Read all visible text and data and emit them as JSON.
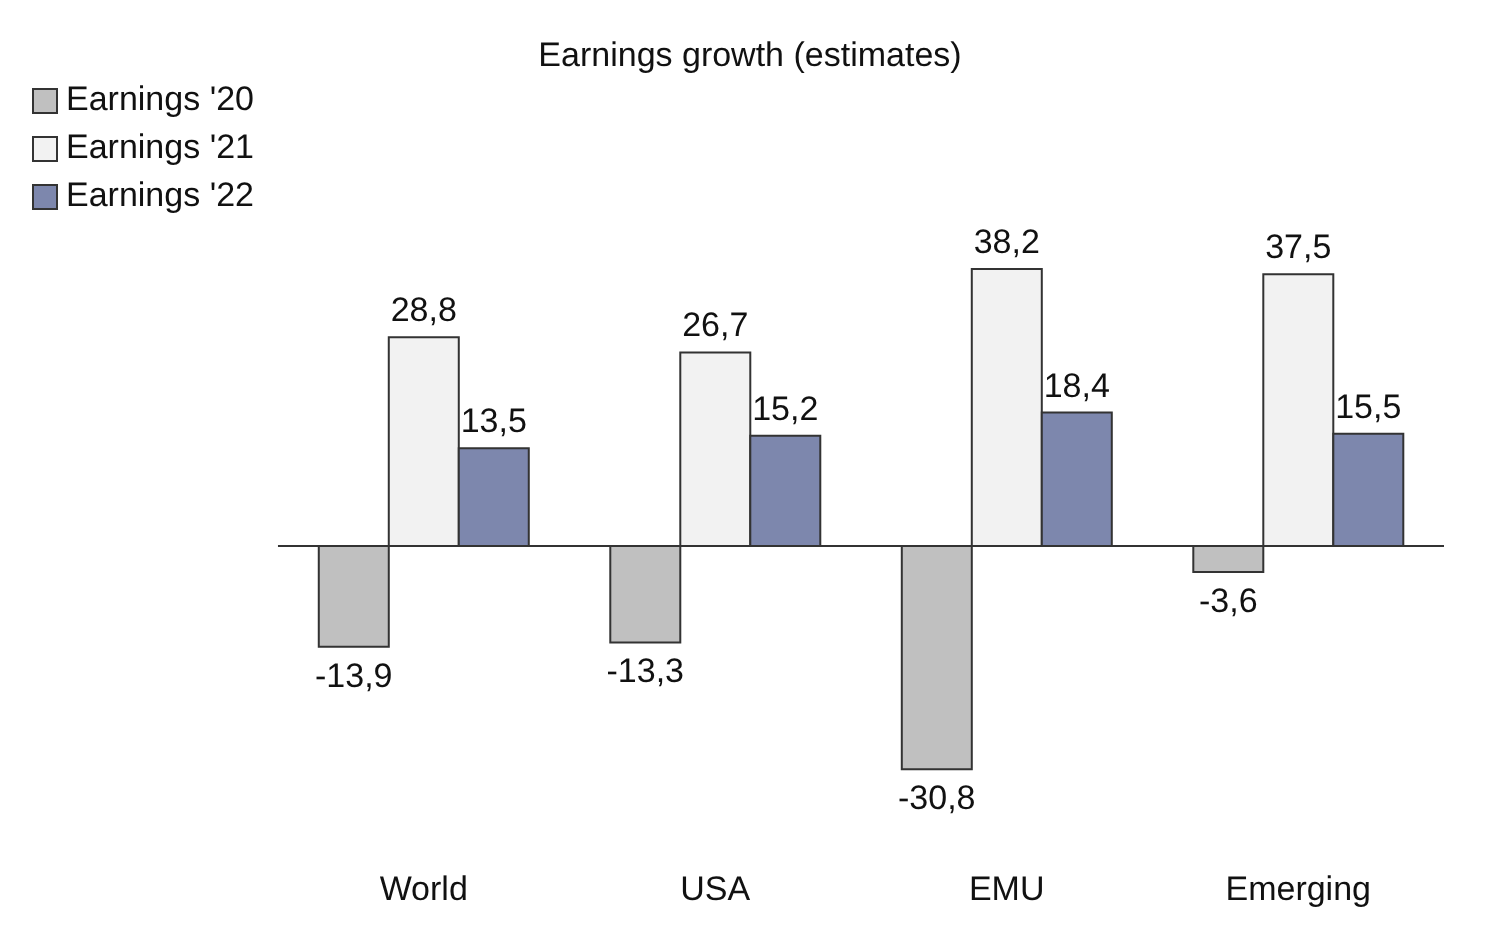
{
  "chart_data": {
    "type": "bar",
    "title": "Earnings growth (estimates)",
    "categories": [
      "World",
      "USA",
      "EMU",
      "Emerging"
    ],
    "series": [
      {
        "name": "Earnings '20",
        "color": "#c0c0c0",
        "values": [
          -13.9,
          -13.3,
          -30.8,
          -3.6
        ],
        "value_labels": [
          "-13,9",
          "-13,3",
          "-30,8",
          "-3,6"
        ]
      },
      {
        "name": "Earnings '21",
        "color": "#f2f2f2",
        "values": [
          28.8,
          26.7,
          38.2,
          37.5
        ],
        "value_labels": [
          "28,8",
          "26,7",
          "38,2",
          "37,5"
        ]
      },
      {
        "name": "Earnings '22",
        "color": "#7d87ad",
        "values": [
          13.5,
          15.2,
          18.4,
          15.5
        ],
        "value_labels": [
          "13,5",
          "15,2",
          "18,4",
          "15,5"
        ]
      }
    ],
    "legend": "top left",
    "grid": false
  }
}
